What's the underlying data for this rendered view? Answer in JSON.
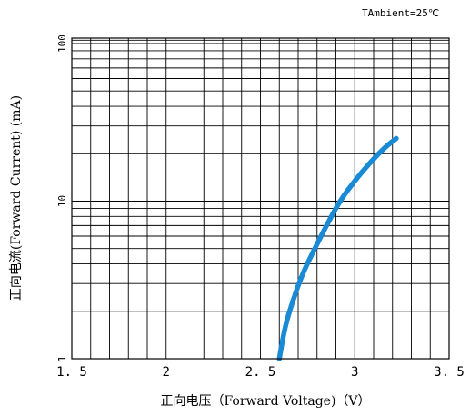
{
  "chart_data": {
    "type": "line",
    "annotation": "TAmbient=25℃",
    "xlabel": "正向电压（Forward  Voltage)（V）",
    "ylabel": "正向电流(Forward  Current) (mA)",
    "xlim": [
      1.5,
      3.5
    ],
    "ylim": [
      1,
      100
    ],
    "y_scale": "log",
    "grid": true,
    "x_ticks": [
      {
        "value": 1.5,
        "label": "1. 5"
      },
      {
        "value": 2,
        "label": "2"
      },
      {
        "value": 2.5,
        "label": "2. 5"
      },
      {
        "value": 3,
        "label": "3"
      },
      {
        "value": 3.5,
        "label": "3. 5"
      }
    ],
    "y_ticks": [
      {
        "value": 1,
        "label": "1"
      },
      {
        "value": 10,
        "label": "10"
      },
      {
        "value": 100,
        "label": "100"
      }
    ],
    "series": [
      {
        "color": "#1a8ad4",
        "points": [
          [
            2.6,
            1.0
          ],
          [
            2.63,
            1.6
          ],
          [
            2.67,
            2.3
          ],
          [
            2.72,
            3.4
          ],
          [
            2.78,
            4.8
          ],
          [
            2.85,
            7.0
          ],
          [
            2.92,
            10.0
          ],
          [
            3.0,
            13.5
          ],
          [
            3.08,
            17.5
          ],
          [
            3.16,
            22.0
          ],
          [
            3.22,
            25.0
          ]
        ]
      }
    ]
  }
}
